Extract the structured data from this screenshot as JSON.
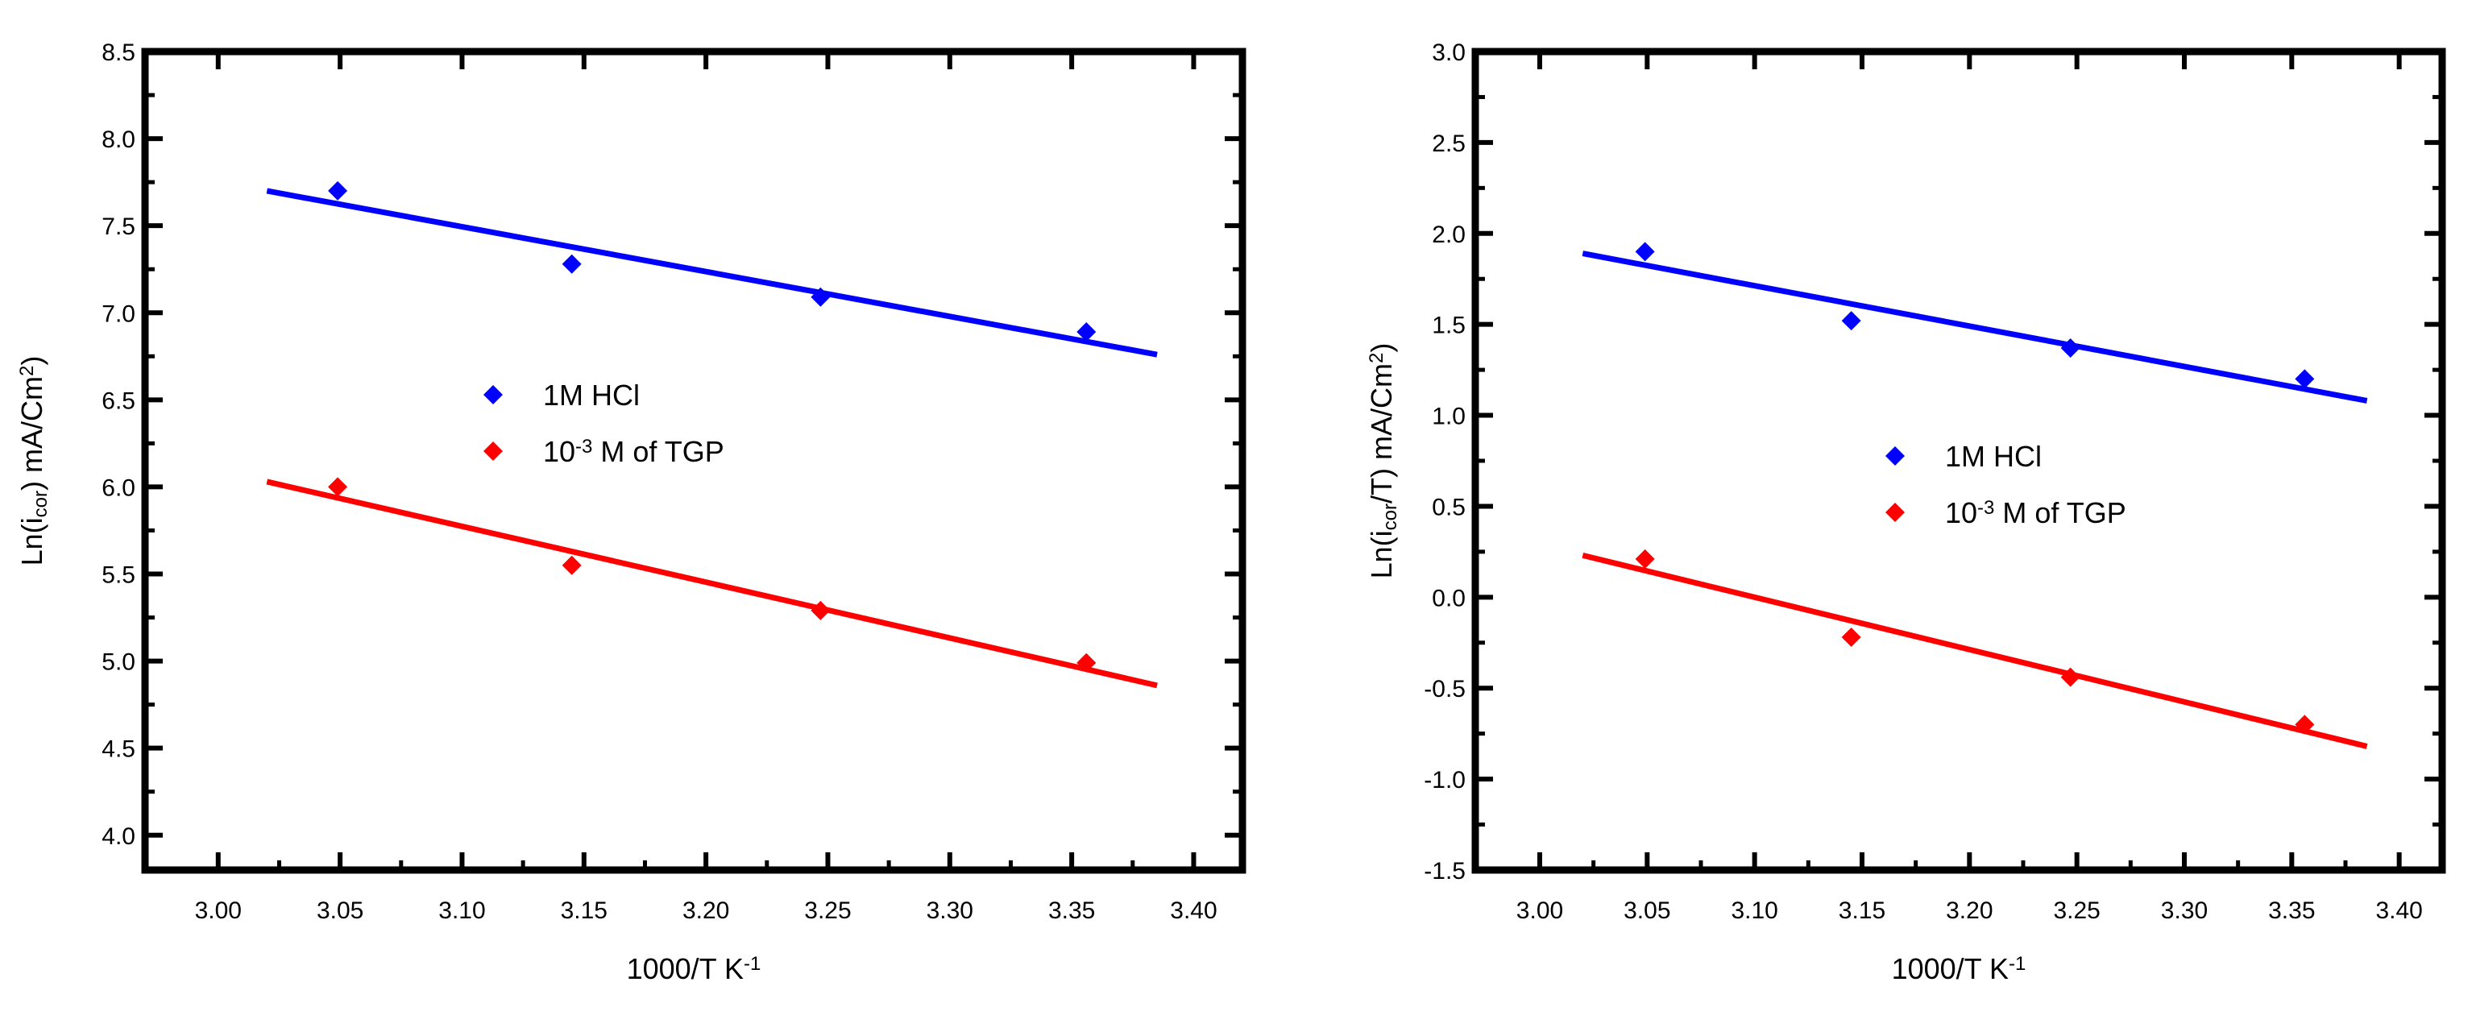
{
  "figure": {
    "xlabel": {
      "main": "1000/T K",
      "sup": "-1"
    }
  },
  "chart_data": [
    {
      "type": "scatter",
      "title": "",
      "ylabel_parts": [
        {
          "t": "Ln(i",
          "s": ""
        },
        {
          "t": "cor",
          "s": "sub"
        },
        {
          "t": ") mA/Cm",
          "s": ""
        },
        {
          "t": "2",
          "s": "sup"
        },
        {
          "t": ")",
          "s": ""
        }
      ],
      "xlim": [
        2.97,
        3.42
      ],
      "ylim": [
        3.8,
        8.5
      ],
      "x_ticks": [
        3.0,
        3.05,
        3.1,
        3.15,
        3.2,
        3.25,
        3.3,
        3.35,
        3.4
      ],
      "x_tick_labels": [
        "3.00",
        "3.05",
        "3.10",
        "3.15",
        "3.20",
        "3.25",
        "3.30",
        "3.35",
        "3.40"
      ],
      "y_ticks": [
        4.0,
        4.5,
        5.0,
        5.5,
        6.0,
        6.5,
        7.0,
        7.5,
        8.0,
        8.5
      ],
      "y_tick_labels": [
        "4.0",
        "4.5",
        "5.0",
        "5.5",
        "6.0",
        "6.5",
        "7.0",
        "7.5",
        "8.0",
        "8.5"
      ],
      "grid": false,
      "legend_position": "center",
      "series": [
        {
          "name": "1M HCl",
          "legend_parts": [
            {
              "t": "1M HCl",
              "s": ""
            }
          ],
          "color": "#0000ff",
          "x": [
            3.049,
            3.145,
            3.247,
            3.356
          ],
          "y": [
            7.7,
            7.28,
            7.09,
            6.89
          ],
          "fit": {
            "x": [
              3.02,
              3.385
            ],
            "y": [
              7.7,
              6.76
            ]
          }
        },
        {
          "name": "10-3 M of TGP",
          "legend_parts": [
            {
              "t": "10",
              "s": ""
            },
            {
              "t": "-3",
              "s": "sup"
            },
            {
              "t": " M of TGP",
              "s": ""
            }
          ],
          "color": "#ff0000",
          "x": [
            3.049,
            3.145,
            3.247,
            3.356
          ],
          "y": [
            6.0,
            5.55,
            5.29,
            4.99
          ],
          "fit": {
            "x": [
              3.02,
              3.385
            ],
            "y": [
              6.03,
              4.86
            ]
          }
        }
      ]
    },
    {
      "type": "scatter",
      "title": "",
      "ylabel_parts": [
        {
          "t": "Ln(i",
          "s": ""
        },
        {
          "t": "cor",
          "s": "sub"
        },
        {
          "t": "/T) mA/Cm",
          "s": ""
        },
        {
          "t": "2",
          "s": "sup"
        },
        {
          "t": ")",
          "s": ""
        }
      ],
      "xlim": [
        2.97,
        3.42
      ],
      "ylim": [
        -1.5,
        3.0
      ],
      "x_ticks": [
        3.0,
        3.05,
        3.1,
        3.15,
        3.2,
        3.25,
        3.3,
        3.35,
        3.4
      ],
      "x_tick_labels": [
        "3.00",
        "3.05",
        "3.10",
        "3.15",
        "3.20",
        "3.25",
        "3.30",
        "3.35",
        "3.40"
      ],
      "y_ticks": [
        -1.5,
        -1.0,
        -0.5,
        0.0,
        0.5,
        1.0,
        1.5,
        2.0,
        2.5,
        3.0
      ],
      "y_tick_labels": [
        "-1.5",
        "-1.0",
        "-0.5",
        "0.0",
        "0.5",
        "1.0",
        "1.5",
        "2.0",
        "2.5",
        "3.0"
      ],
      "grid": false,
      "legend_position": "center",
      "series": [
        {
          "name": "1M HCl",
          "legend_parts": [
            {
              "t": "1M HCl",
              "s": ""
            }
          ],
          "color": "#0000ff",
          "x": [
            3.049,
            3.145,
            3.247,
            3.356
          ],
          "y": [
            1.9,
            1.52,
            1.37,
            1.2
          ],
          "fit": {
            "x": [
              3.02,
              3.385
            ],
            "y": [
              1.89,
              1.08
            ]
          }
        },
        {
          "name": "10-3 M of TGP",
          "legend_parts": [
            {
              "t": "10",
              "s": ""
            },
            {
              "t": "-3",
              "s": "sup"
            },
            {
              "t": " M of TGP",
              "s": ""
            }
          ],
          "color": "#ff0000",
          "x": [
            3.049,
            3.145,
            3.247,
            3.356
          ],
          "y": [
            0.21,
            -0.22,
            -0.44,
            -0.7
          ],
          "fit": {
            "x": [
              3.02,
              3.385
            ],
            "y": [
              0.23,
              -0.82
            ]
          }
        }
      ]
    }
  ]
}
